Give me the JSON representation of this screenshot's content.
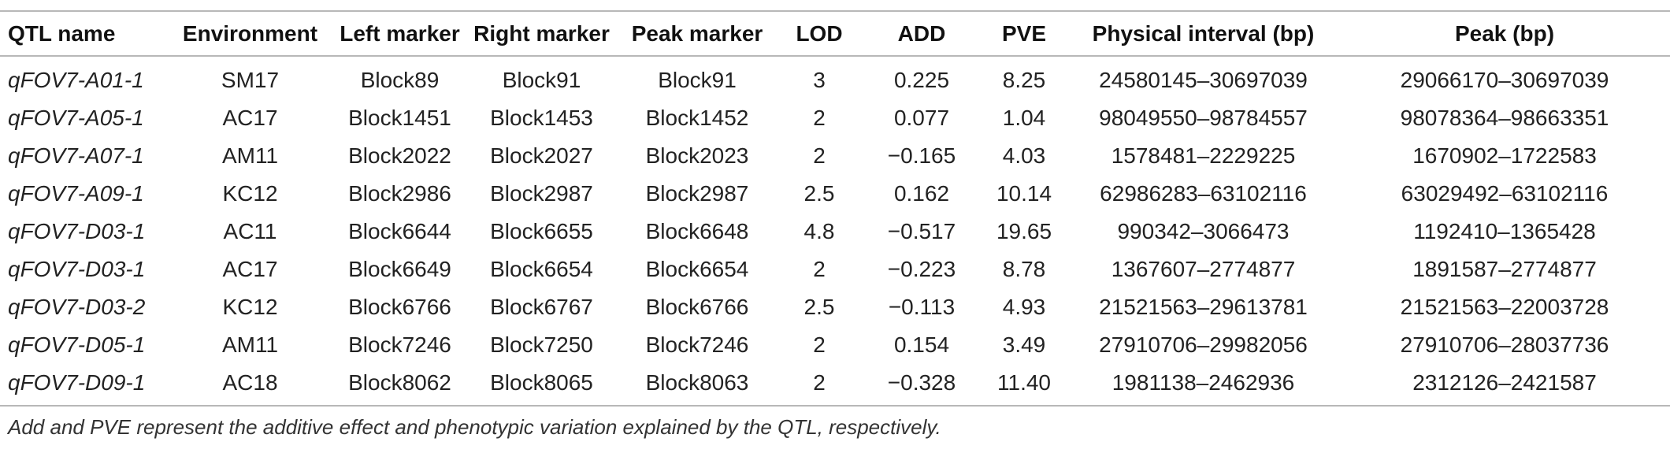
{
  "table": {
    "headers": [
      "QTL name",
      "Environment",
      "Left marker",
      "Right marker",
      "Peak marker",
      "LOD",
      "ADD",
      "PVE",
      "Physical interval (bp)",
      "Peak (bp)"
    ],
    "rows": [
      [
        "qFOV7-A01-1",
        "SM17",
        "Block89",
        "Block91",
        "Block91",
        "3",
        "0.225",
        "8.25",
        "24580145–30697039",
        "29066170–30697039"
      ],
      [
        "qFOV7-A05-1",
        "AC17",
        "Block1451",
        "Block1453",
        "Block1452",
        "2",
        "0.077",
        "1.04",
        "98049550–98784557",
        "98078364–98663351"
      ],
      [
        "qFOV7-A07-1",
        "AM11",
        "Block2022",
        "Block2027",
        "Block2023",
        "2",
        "−0.165",
        "4.03",
        "1578481–2229225",
        "1670902–1722583"
      ],
      [
        "qFOV7-A09-1",
        "KC12",
        "Block2986",
        "Block2987",
        "Block2987",
        "2.5",
        "0.162",
        "10.14",
        "62986283–63102116",
        "63029492–63102116"
      ],
      [
        "qFOV7-D03-1",
        "AC11",
        "Block6644",
        "Block6655",
        "Block6648",
        "4.8",
        "−0.517",
        "19.65",
        "990342–3066473",
        "1192410–1365428"
      ],
      [
        "qFOV7-D03-1",
        "AC17",
        "Block6649",
        "Block6654",
        "Block6654",
        "2",
        "−0.223",
        "8.78",
        "1367607–2774877",
        "1891587–2774877"
      ],
      [
        "qFOV7-D03-2",
        "KC12",
        "Block6766",
        "Block6767",
        "Block6766",
        "2.5",
        "−0.113",
        "4.93",
        "21521563–29613781",
        "21521563–22003728"
      ],
      [
        "qFOV7-D05-1",
        "AM11",
        "Block7246",
        "Block7250",
        "Block7246",
        "2",
        "0.154",
        "3.49",
        "27910706–29982056",
        "27910706–28037736"
      ],
      [
        "qFOV7-D09-1",
        "AC18",
        "Block8062",
        "Block8065",
        "Block8063",
        "2",
        "−0.328",
        "11.40",
        "1981138–2462936",
        "2312126–2421587"
      ]
    ]
  },
  "footnote": "Add and PVE represent the additive effect and phenotypic variation explained by the QTL, respectively."
}
